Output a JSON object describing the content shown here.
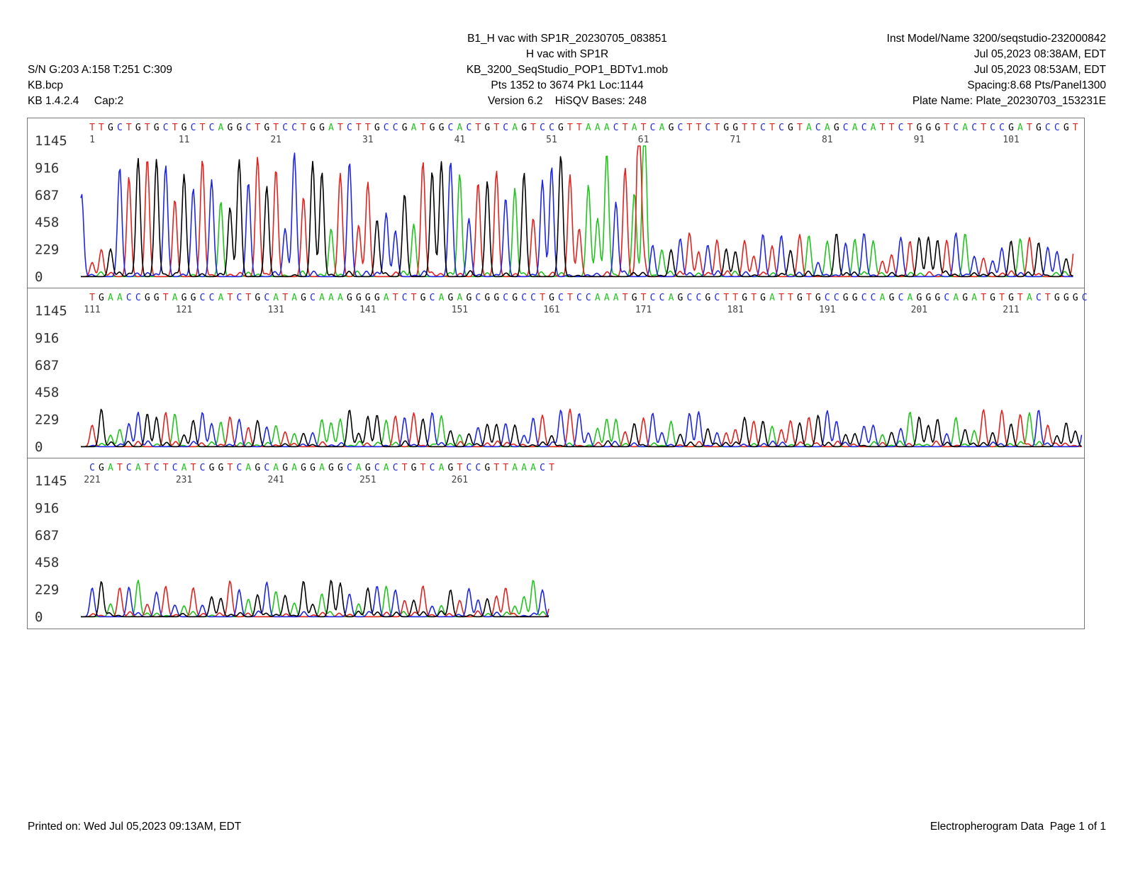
{
  "header": {
    "left": [
      "S/N G:203 A:158 T:251 C:309",
      "KB.bcp",
      "KB 1.4.2.4     Cap:2"
    ],
    "center": [
      "B1_H vac with SP1R_20230705_083851",
      "H vac with SP1R",
      "KB_3200_SeqStudio_POP1_BDTv1.mob",
      "Pts 1352 to 3674 Pk1 Loc:1144",
      "Version 6.2    HiSQV Bases: 248"
    ],
    "right": [
      "Inst Model/Name 3200/seqstudio-232000842",
      "Jul 05,2023 08:38AM, EDT",
      "Jul 05,2023 08:53AM, EDT",
      "Spacing:8.68  Pts/Panel1300",
      "Plate Name: Plate_20230703_153231E"
    ]
  },
  "footer": {
    "left": "Printed on: Wed Jul 05,2023 09:13AM, EDT",
    "right": "Electropherogram Data  Page 1 of 1"
  },
  "colors": {
    "G": "#000000",
    "A": "#22c31f",
    "T": "#e0231f",
    "C": "#1f26e0",
    "frame": "#777777"
  },
  "chart_data": {
    "type": "line",
    "title": "",
    "xlabel": "",
    "ylabel": "",
    "ylim": [
      0,
      1145
    ],
    "yticks": [
      0,
      229,
      458,
      687,
      916,
      1145
    ],
    "legend": "none",
    "grid": false,
    "panels": [
      {
        "sequence": "TTGCTGTGCTGCTCAGGCTGTCCTGGATCTTGCCGATGGCACTGTCAGTCCGTTAAACTATCAGCTTCTGGTTCTCGTACAGCACATTCTGGGTCACTCCGATGCCGT",
        "position_labels": [
          "1",
          "11",
          "21",
          "31",
          "41",
          "51",
          "61",
          "71",
          "81",
          "91",
          "101"
        ]
      },
      {
        "sequence": "TGAACCGGTAGGCCATCTGCATAGCAAAGGGGATCTGCAGAGCGGCGCCTGCTCCAAATGTCCAGCCGCTTGTGATTGTGCCGGCCAGCAGGGCAGATGTGTACTGGGC",
        "position_labels": [
          "111",
          "121",
          "131",
          "141",
          "151",
          "161",
          "171",
          "181",
          "191",
          "201",
          "211"
        ]
      },
      {
        "sequence": "CGATCATCTCATCGGTCAGCAGAGGAGGCAGCACTGTCAGTCCGTTAAACT",
        "position_labels": [
          "221",
          "231",
          "241",
          "251",
          "261"
        ]
      }
    ],
    "series": [
      {
        "name": "G"
      },
      {
        "name": "A"
      },
      {
        "name": "T"
      },
      {
        "name": "C"
      }
    ]
  }
}
